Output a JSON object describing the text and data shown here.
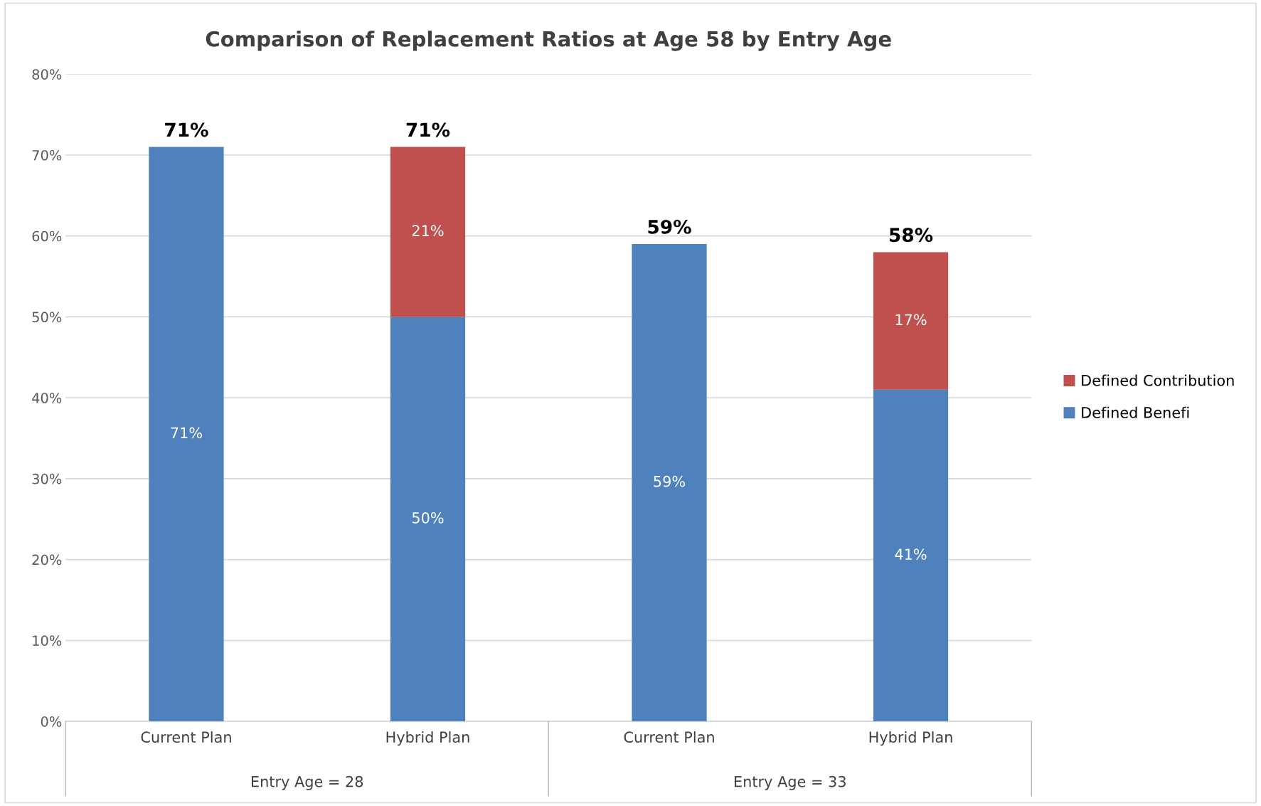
{
  "chart_data": {
    "type": "bar",
    "title": "Comparison of Replacement Ratios at Age 58 by Entry Age",
    "categories": [
      "Current Plan",
      "Hybrid Plan",
      "Current Plan",
      "Hybrid Plan"
    ],
    "series": [
      {
        "name": "Defined Benefi",
        "color": "#4f81bd",
        "values": [
          71,
          50,
          59,
          41
        ],
        "value_labels": [
          "71%",
          "50%",
          "59%",
          "41%"
        ]
      },
      {
        "name": "Defined Contribution",
        "color": "#c0504d",
        "values": [
          null,
          21,
          null,
          17
        ],
        "value_labels": [
          null,
          "21%",
          null,
          "17%"
        ]
      }
    ],
    "stacked": true,
    "totals": [
      "71%",
      "71%",
      "59%",
      "58%"
    ],
    "annotations": [
      "Entry Age = 28",
      "Entry Age = 33"
    ],
    "ylim": [
      0,
      80
    ],
    "yticks": [
      {
        "value": 0,
        "label": "0%"
      },
      {
        "value": 10,
        "label": "10%"
      },
      {
        "value": 20,
        "label": "20%"
      },
      {
        "value": 30,
        "label": "30%"
      },
      {
        "value": 40,
        "label": "40%"
      },
      {
        "value": 50,
        "label": "50%"
      },
      {
        "value": 60,
        "label": "60%"
      },
      {
        "value": 70,
        "label": "70%"
      },
      {
        "value": 80,
        "label": "80%"
      }
    ],
    "grid": "y",
    "legend": "right"
  }
}
